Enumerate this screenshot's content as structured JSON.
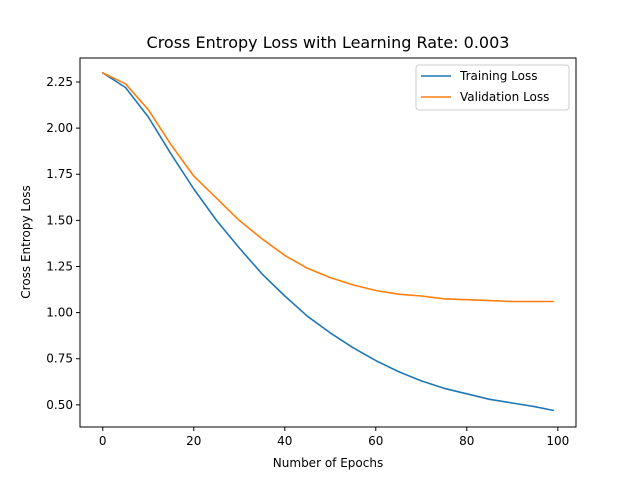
{
  "chart_data": {
    "type": "line",
    "title": "Cross Entropy Loss with Learning Rate: 0.003",
    "xlabel": "Number of Epochs",
    "ylabel": "Cross Entropy Loss",
    "xlim": [
      -5,
      104
    ],
    "ylim": [
      0.38,
      2.38
    ],
    "xticks": [
      0,
      20,
      40,
      60,
      80,
      100
    ],
    "yticks": [
      0.5,
      0.75,
      1.0,
      1.25,
      1.5,
      1.75,
      2.0,
      2.25
    ],
    "grid": false,
    "legend": "top-right",
    "series": [
      {
        "name": "Training Loss",
        "color": "#1f77b4",
        "x": [
          0,
          5,
          10,
          15,
          20,
          25,
          30,
          35,
          40,
          45,
          50,
          55,
          60,
          65,
          70,
          75,
          80,
          85,
          90,
          95,
          99
        ],
        "y": [
          2.3,
          2.22,
          2.06,
          1.86,
          1.67,
          1.5,
          1.35,
          1.21,
          1.09,
          0.98,
          0.89,
          0.81,
          0.74,
          0.68,
          0.63,
          0.59,
          0.56,
          0.53,
          0.51,
          0.49,
          0.47
        ]
      },
      {
        "name": "Validation Loss",
        "color": "#ff7f0e",
        "x": [
          0,
          5,
          10,
          15,
          20,
          25,
          30,
          35,
          40,
          45,
          50,
          55,
          60,
          65,
          70,
          75,
          80,
          85,
          90,
          95,
          99
        ],
        "y": [
          2.3,
          2.24,
          2.1,
          1.91,
          1.74,
          1.62,
          1.5,
          1.4,
          1.31,
          1.24,
          1.19,
          1.15,
          1.12,
          1.1,
          1.09,
          1.075,
          1.07,
          1.065,
          1.06,
          1.06,
          1.06
        ]
      }
    ]
  }
}
